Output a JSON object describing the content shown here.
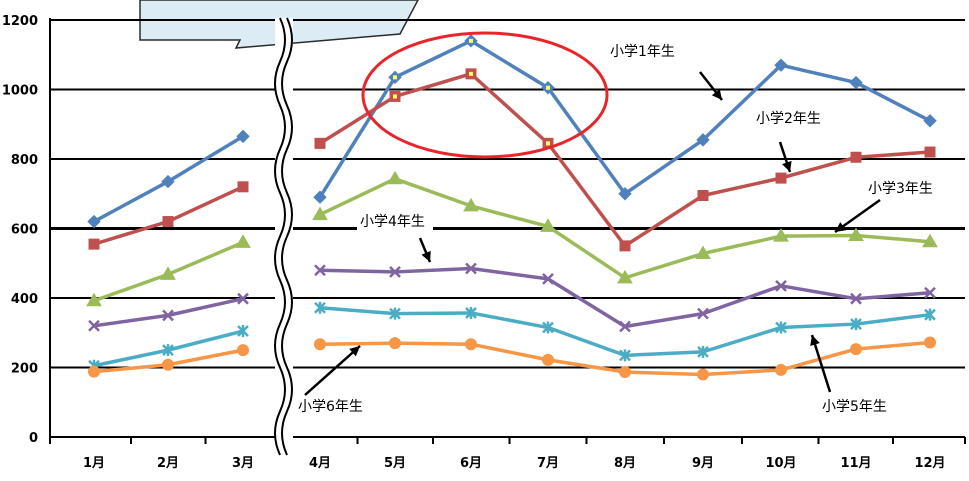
{
  "chart_data": {
    "type": "line",
    "categories": [
      "1月",
      "2月",
      "3月",
      "4月",
      "5月",
      "6月",
      "7月",
      "8月",
      "9月",
      "10月",
      "11月",
      "12月"
    ],
    "ylim": [
      0,
      1200
    ],
    "yticks": [
      "0",
      "200",
      "400",
      "600",
      "800",
      "1000",
      "1200"
    ],
    "grid": "horizontal",
    "axis_break_between": [
      "3月",
      "4月"
    ],
    "series": [
      {
        "name": "小学1年生",
        "color": "#4F81BD",
        "marker": "diamond",
        "values": [
          620,
          735,
          865,
          690,
          1035,
          1140,
          1005,
          700,
          855,
          1070,
          1020,
          910
        ]
      },
      {
        "name": "小学2年生",
        "color": "#C0504D",
        "marker": "square",
        "values": [
          555,
          620,
          720,
          845,
          980,
          1045,
          845,
          550,
          695,
          745,
          805,
          820
        ]
      },
      {
        "name": "小学3年生",
        "color": "#9BBB59",
        "marker": "triangle",
        "values": [
          392,
          468,
          560,
          640,
          743,
          665,
          606,
          458,
          528,
          578,
          580,
          562
        ]
      },
      {
        "name": "小学4年生",
        "color": "#8064A2",
        "marker": "x",
        "values": [
          320,
          350,
          398,
          480,
          475,
          485,
          455,
          318,
          355,
          435,
          398,
          415
        ]
      },
      {
        "name": "小学5年生",
        "color": "#4BACC6",
        "marker": "asterisk",
        "values": [
          205,
          250,
          305,
          372,
          355,
          357,
          315,
          235,
          245,
          315,
          325,
          352
        ]
      },
      {
        "name": "小学6年生",
        "color": "#F79646",
        "marker": "circle",
        "values": [
          188,
          208,
          250,
          267,
          270,
          267,
          222,
          187,
          180,
          193,
          253,
          272
        ]
      }
    ],
    "annotations": {
      "callout_shape": "light-blue speech callout at top (partially visible)",
      "highlight": "red ellipse around 5月–7月 of 小学1年生 and 小学2年生"
    }
  }
}
